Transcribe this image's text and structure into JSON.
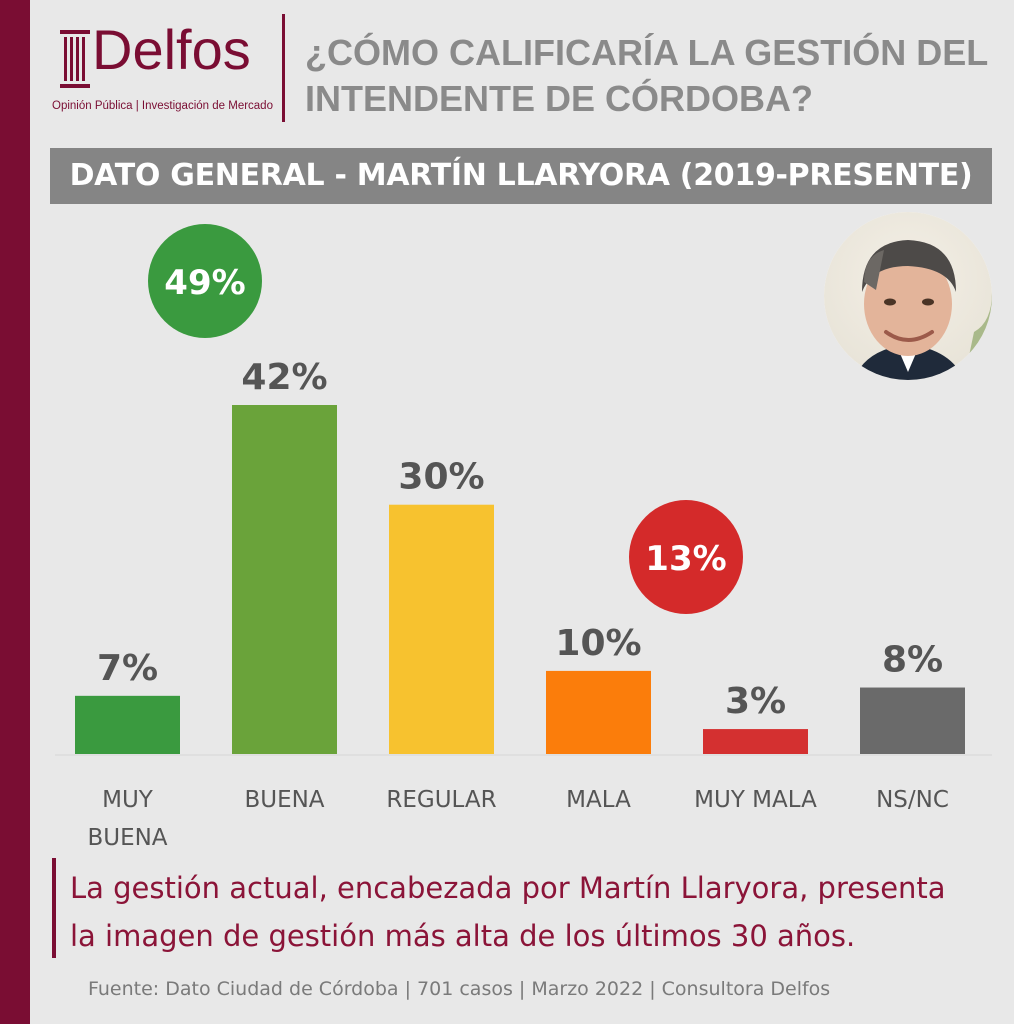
{
  "brand": {
    "name": "Delfos",
    "tagline": "Opinión Pública | Investigación de Mercado",
    "color": "#7a0d33"
  },
  "question": "¿CÓMO CALIFICARÍA LA GESTIÓN DEL\nINTENDENTE DE CÓRDOBA?",
  "banner": "DATO GENERAL - MARTÍN LLARYORA (2019-PRESENTE)",
  "chart_data": {
    "type": "bar",
    "categories": [
      "MUY BUENA",
      "BUENA",
      "REGULAR",
      "MALA",
      "MUY MALA",
      "NS/NC"
    ],
    "values": [
      7,
      42,
      30,
      10,
      3,
      8
    ],
    "value_labels": [
      "7%",
      "42%",
      "30%",
      "10%",
      "3%",
      "8%"
    ],
    "colors": [
      "#3a9a3f",
      "#6aa33a",
      "#f7c22f",
      "#fb7d0b",
      "#d43030",
      "#6a6a6a"
    ],
    "grid": false,
    "ylim": [
      0,
      42
    ],
    "aggregates": [
      {
        "label": "49%",
        "value": 49,
        "color": "#3a9a3f",
        "spans": [
          "MUY BUENA",
          "BUENA"
        ]
      },
      {
        "label": "13%",
        "value": 13,
        "color": "#d42a2a",
        "spans": [
          "MALA",
          "MUY MALA"
        ]
      }
    ]
  },
  "note": "La gestión actual, encabezada por Martín Llaryora, presenta\nla imagen de gestión más alta de los últimos 30 años.",
  "source": "Fuente: Dato Ciudad de Córdoba | 701 casos | Marzo 2022 | Consultora Delfos"
}
